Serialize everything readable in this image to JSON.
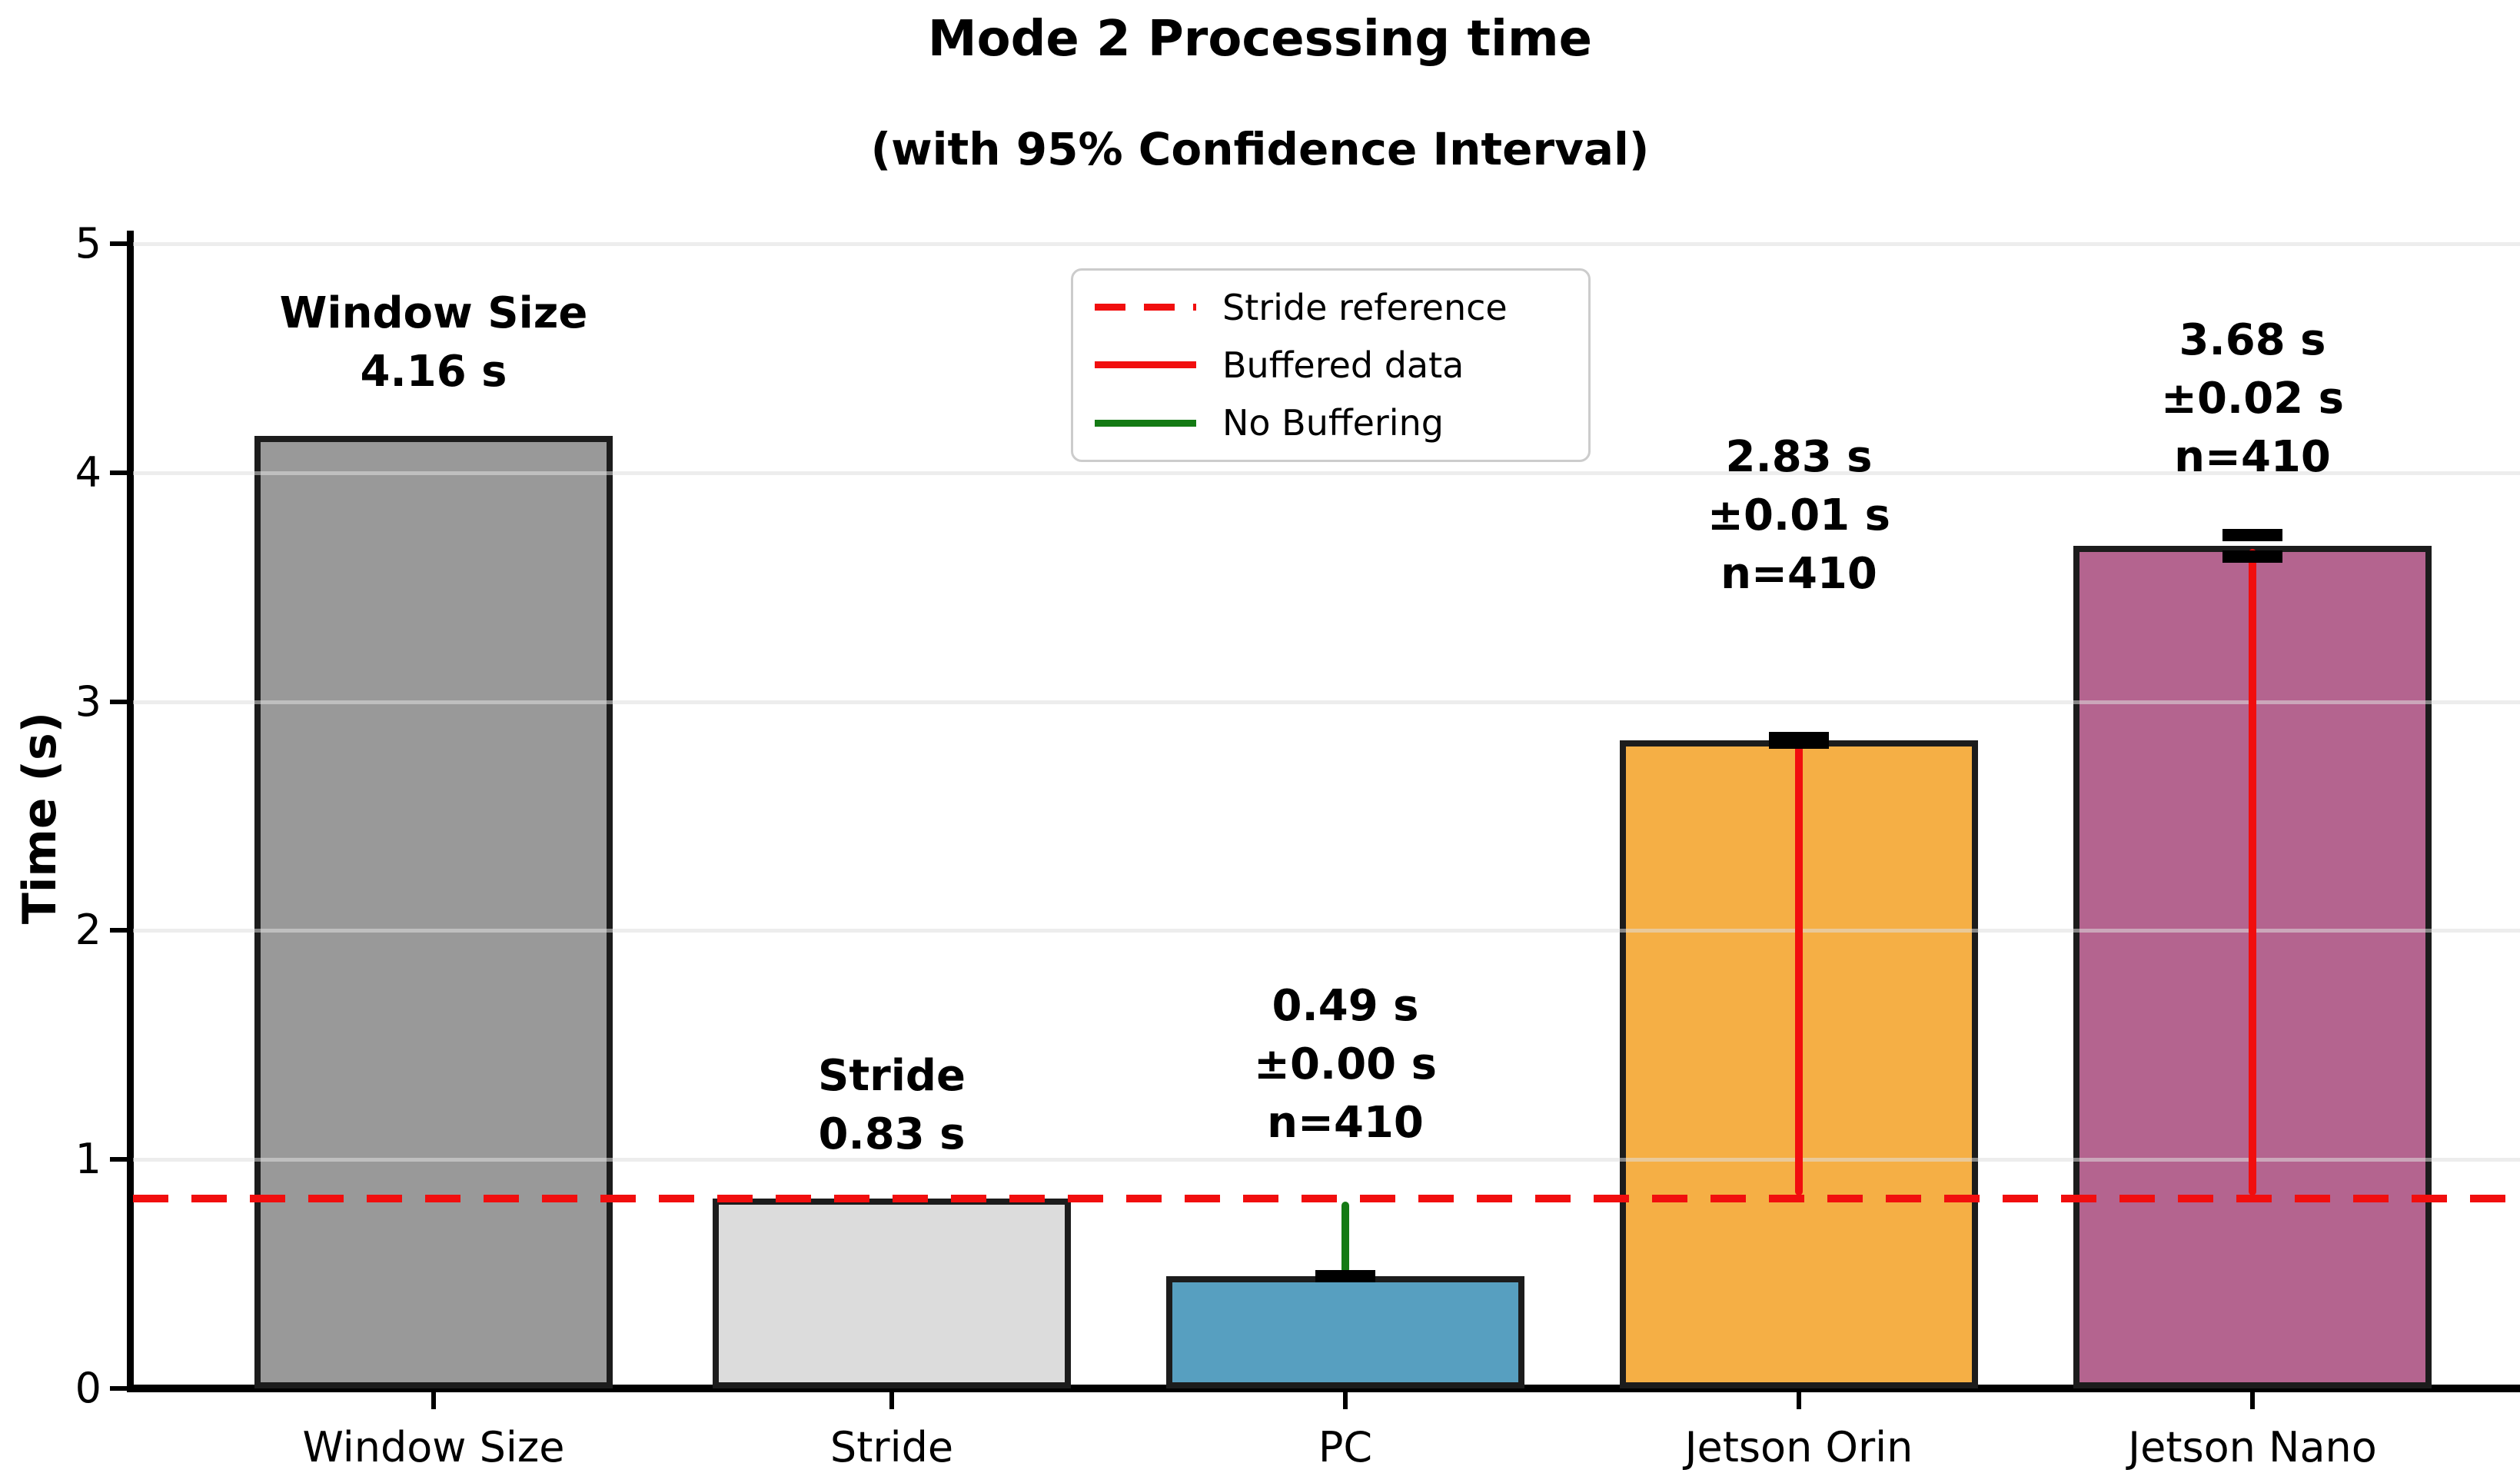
{
  "title": "Mode 2 Processing time",
  "subtitle": "(with 95% Confidence Interval)",
  "y_axis": {
    "label": "Time (s)",
    "ticks": [
      "0",
      "1",
      "2",
      "3",
      "4",
      "5"
    ],
    "max": 5,
    "grid": true
  },
  "reference_line": {
    "value": 0.83,
    "color": "#F10E0E",
    "style": "dashed"
  },
  "legend": {
    "position": "upper center",
    "items": [
      {
        "label": "Stride reference",
        "color": "#F10E0E",
        "dash": true
      },
      {
        "label": "Buffered data",
        "color": "#F10E0E",
        "dash": false
      },
      {
        "label": "No Buffering",
        "color": "#147A14",
        "dash": false
      }
    ]
  },
  "chart_data": {
    "type": "bar",
    "categories": [
      "Window Size",
      "Stride",
      "PC",
      "Jetson Orin",
      "Jetson Nano"
    ],
    "values": [
      4.16,
      0.83,
      0.49,
      2.83,
      3.68
    ],
    "errors_95ci": [
      null,
      null,
      0.0,
      0.01,
      0.02
    ],
    "n_samples": [
      null,
      null,
      410,
      410,
      410
    ],
    "bar_colors": [
      "#999999",
      "#DCDCDC",
      "#579FC0",
      "#F5AF45",
      "#B4648F"
    ],
    "bar_edge_color": "#1c1c1c",
    "connector_colors": [
      null,
      null,
      "#147A14",
      "#F10E0E",
      "#F10E0E"
    ],
    "annotations": [
      [
        "Window Size",
        "4.16 s"
      ],
      [
        "Stride",
        "0.83 s"
      ],
      [
        "0.49 s",
        "±0.00 s",
        "n=410"
      ],
      [
        "2.83 s",
        "±0.01 s",
        "n=410"
      ],
      [
        "3.68 s",
        "±0.02 s",
        "n=410"
      ]
    ],
    "annotation_y": [
      4.31,
      0.98,
      1.03,
      3.43,
      3.94
    ],
    "title": "Mode 2 Processing time",
    "xlabel": "",
    "ylabel": "Time (s)",
    "ylim": [
      0,
      5
    ]
  }
}
